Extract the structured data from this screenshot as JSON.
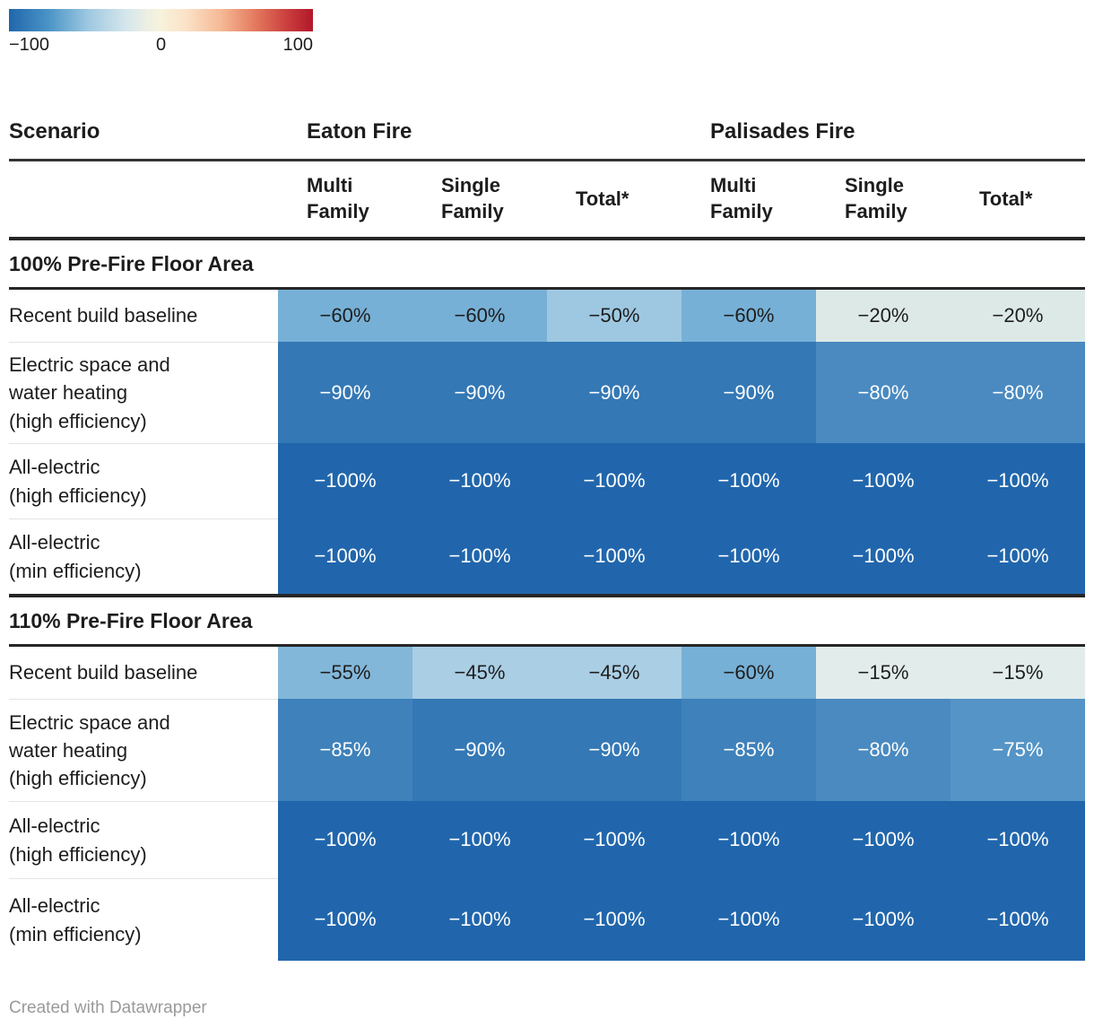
{
  "legend": {
    "min_label": "−100",
    "mid_label": "0",
    "max_label": "100"
  },
  "table": {
    "scenario_header": "Scenario",
    "group_headers": [
      "Eaton Fire",
      "Palisades Fire"
    ],
    "column_headers": [
      "Multi Family",
      "Single Family",
      "Total*",
      "Multi Family",
      "Single Family",
      "Total*"
    ]
  },
  "chart_data": {
    "type": "heatmap",
    "unit": "%",
    "color_scale": {
      "type": "diverging",
      "min": -100,
      "mid": 0,
      "max": 100
    },
    "columns": [
      "Eaton Fire Multi Family",
      "Eaton Fire Single Family",
      "Eaton Fire Total*",
      "Palisades Fire Multi Family",
      "Palisades Fire Single Family",
      "Palisades Fire Total*"
    ],
    "sections": [
      {
        "name": "100% Pre-Fire Floor Area",
        "rows": [
          {
            "scenario": "Recent build baseline",
            "label_lines": [
              "Recent build baseline"
            ],
            "values": [
              -60,
              -60,
              -50,
              -60,
              -20,
              -20
            ]
          },
          {
            "scenario": "Electric space and water heating (high efficiency)",
            "label_lines": [
              "Electric space and",
              "water heating",
              "(high efficiency)"
            ],
            "values": [
              -90,
              -90,
              -90,
              -90,
              -80,
              -80
            ]
          },
          {
            "scenario": "All-electric (high efficiency)",
            "label_lines": [
              "All-electric",
              "(high efficiency)"
            ],
            "values": [
              -100,
              -100,
              -100,
              -100,
              -100,
              -100
            ]
          },
          {
            "scenario": "All-electric (min efficiency)",
            "label_lines": [
              "All-electric",
              "(min efficiency)"
            ],
            "values": [
              -100,
              -100,
              -100,
              -100,
              -100,
              -100
            ]
          }
        ]
      },
      {
        "name": "110% Pre-Fire Floor Area",
        "rows": [
          {
            "scenario": "Recent build baseline",
            "label_lines": [
              "Recent build baseline"
            ],
            "values": [
              -55,
              -45,
              -45,
              -60,
              -15,
              -15
            ]
          },
          {
            "scenario": "Electric space and water heating (high efficiency)",
            "label_lines": [
              "Electric space and",
              "water heating",
              "(high efficiency)"
            ],
            "values": [
              -85,
              -90,
              -90,
              -85,
              -80,
              -75
            ]
          },
          {
            "scenario": "All-electric (high efficiency)",
            "label_lines": [
              "All-electric",
              "(high efficiency)"
            ],
            "values": [
              -100,
              -100,
              -100,
              -100,
              -100,
              -100
            ]
          },
          {
            "scenario": "All-electric (min efficiency)",
            "label_lines": [
              "All-electric",
              "(min efficiency)"
            ],
            "values": [
              -100,
              -100,
              -100,
              -100,
              -100,
              -100
            ]
          }
        ]
      }
    ]
  },
  "colors": {
    "legend_gradient": [
      "#2166ac 0%",
      "#4a94c6 13%",
      "#9ec8e1 26%",
      "#d3e5ec 38%",
      "#eef0e3 46%",
      "#f7f2dc 50%",
      "#fbe3c8 58%",
      "#f5b894 70%",
      "#e2745a 82%",
      "#c93c3c 92%",
      "#b2182b 100%"
    ],
    "cell_colormap": {
      "-100": {
        "bg": "#2166ac",
        "fg": "#ffffff"
      },
      "-90": {
        "bg": "#3478b5",
        "fg": "#ffffff"
      },
      "-85": {
        "bg": "#3f81ba",
        "fg": "#ffffff"
      },
      "-80": {
        "bg": "#4a8ac0",
        "fg": "#ffffff"
      },
      "-75": {
        "bg": "#5494c6",
        "fg": "#ffffff"
      },
      "-60": {
        "bg": "#77b0d6",
        "fg": "#1d1d1d"
      },
      "-55": {
        "bg": "#83b7d9",
        "fg": "#1d1d1d"
      },
      "-50": {
        "bg": "#9ec8e1",
        "fg": "#1d1d1d"
      },
      "-45": {
        "bg": "#aacee4",
        "fg": "#1d1d1d"
      },
      "-20": {
        "bg": "#dde9e7",
        "fg": "#1d1d1d"
      },
      "-15": {
        "bg": "#e2ecea",
        "fg": "#1d1d1d"
      }
    }
  },
  "footer": {
    "credit": "Created with Datawrapper"
  }
}
